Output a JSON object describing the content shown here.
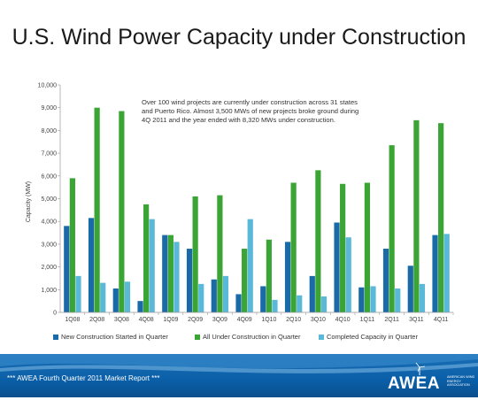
{
  "colors": {
    "new": "#1a6aa8",
    "all": "#3aa535",
    "completed": "#5ab8d8"
  },
  "chart_data": {
    "type": "bar",
    "title": "U.S. Wind Power Capacity under Construction",
    "ylabel": "Capacity (MW)",
    "xlabel": "",
    "ylim": [
      0,
      10000
    ],
    "yticks": [
      {
        "value": 0,
        "label": "0"
      },
      {
        "value": 1000,
        "label": "1,000"
      },
      {
        "value": 2000,
        "label": "2,000"
      },
      {
        "value": 3000,
        "label": "3,000"
      },
      {
        "value": 4000,
        "label": "4,000"
      },
      {
        "value": 5000,
        "label": "5,000"
      },
      {
        "value": 6000,
        "label": "6,000"
      },
      {
        "value": 7000,
        "label": "7,000"
      },
      {
        "value": 8000,
        "label": "8,000"
      },
      {
        "value": 9000,
        "label": "9,000"
      },
      {
        "value": 10000,
        "label": "10,000"
      }
    ],
    "categories": [
      "1Q08",
      "2Q08",
      "3Q08",
      "4Q08",
      "1Q09",
      "2Q09",
      "3Q09",
      "4Q09",
      "1Q10",
      "2Q10",
      "3Q10",
      "4Q10",
      "1Q11",
      "2Q11",
      "3Q11",
      "4Q11"
    ],
    "series": [
      {
        "name": "New Construction Started in Quarter",
        "color": "#1a6aa8",
        "values": [
          3800,
          4150,
          1050,
          500,
          3400,
          2800,
          1450,
          800,
          1150,
          3100,
          1600,
          3950,
          1100,
          2800,
          2050,
          3400
        ]
      },
      {
        "name": "All Under Construction in Quarter",
        "color": "#3aa535",
        "values": [
          5900,
          9000,
          8850,
          4750,
          3400,
          5100,
          5150,
          2800,
          3200,
          5700,
          6250,
          5650,
          5700,
          7350,
          8450,
          8320
        ]
      },
      {
        "name": "Completed Capacity in Quarter",
        "color": "#5ab8d8",
        "values": [
          1600,
          1300,
          1350,
          4100,
          3100,
          1250,
          1600,
          4100,
          550,
          750,
          700,
          3300,
          1150,
          1050,
          1250,
          3450
        ]
      }
    ],
    "annotation": "Over 100 wind projects are currently under construction across 31 states and Puerto Rico. Almost 3,500 MWs of new projects broke ground during 4Q 2011 and the year ended with 8,320 MWs under construction.",
    "grid": false,
    "legend": "bottom"
  },
  "footer": {
    "text": "*** AWEA Fourth Quarter 2011 Market Report ***",
    "logo_text": "AWEA",
    "logo_sub": "AMERICAN WIND ENERGY ASSOCIATION"
  }
}
